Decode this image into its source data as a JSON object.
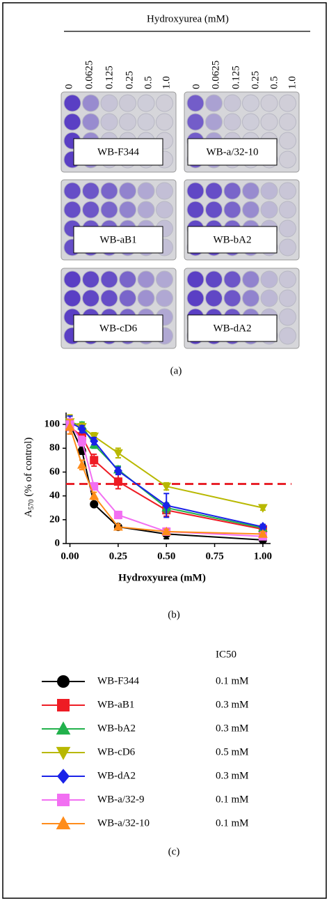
{
  "panel_a": {
    "title": "Hydroxyurea (mM)",
    "concentrations": [
      "0",
      "0.0625",
      "0.125",
      "0.25",
      "0.5",
      "1.0"
    ],
    "plates": [
      "WB-F344",
      "WB-a/32-10",
      "WB-aB1",
      "WB-bA2",
      "WB-cD6",
      "WB-dA2"
    ],
    "caption": "(a)"
  },
  "chart_data": {
    "type": "line",
    "x_label": "Hydroxyurea (mM)",
    "y_label_parts": [
      "A",
      "570",
      "(% of control)"
    ],
    "caption": "(b)",
    "x": [
      0,
      0.0625,
      0.125,
      0.25,
      0.5,
      1.0
    ],
    "xlim": [
      -0.02,
      1.04
    ],
    "xticks": [
      {
        "value": 0,
        "label": "0.00"
      },
      {
        "value": 0.25,
        "label": "0.25"
      },
      {
        "value": 0.5,
        "label": "0.50"
      },
      {
        "value": 0.75,
        "label": "0.75"
      },
      {
        "value": 1,
        "label": "1.00"
      }
    ],
    "ylim": [
      0,
      110
    ],
    "yticks": [
      0,
      20,
      40,
      60,
      80,
      100
    ],
    "reference_line": {
      "value": 50,
      "color": "#e8222a"
    },
    "legend_title": "IC50",
    "legend_caption": "(c)",
    "series": [
      {
        "name": "WB-F344",
        "color": "#000000",
        "marker": "circle",
        "ic50": "0.1 mM",
        "values": [
          100,
          78,
          33,
          14,
          8,
          3
        ],
        "errors": [
          5,
          3,
          2,
          2,
          4,
          2
        ]
      },
      {
        "name": "WB-aB1",
        "color": "#ee1c24",
        "marker": "square",
        "ic50": "0.3 mM",
        "values": [
          98,
          90,
          70,
          52,
          28,
          12
        ],
        "errors": [
          6,
          4,
          5,
          6,
          5,
          4
        ]
      },
      {
        "name": "WB-bA2",
        "color": "#22b14c",
        "marker": "triangle",
        "ic50": "0.3 mM",
        "values": [
          102,
          99,
          83,
          62,
          30,
          13
        ],
        "errors": [
          5,
          3,
          3,
          3,
          4,
          3
        ]
      },
      {
        "name": "WB-cD6",
        "color": "#b8b800",
        "marker": "triangle-down",
        "ic50": "0.5 mM",
        "values": [
          102,
          98,
          90,
          76,
          48,
          30
        ],
        "errors": [
          6,
          3,
          3,
          4,
          3,
          2
        ]
      },
      {
        "name": "WB-dA2",
        "color": "#1a22e8",
        "marker": "diamond",
        "ic50": "0.3 mM",
        "values": [
          102,
          96,
          86,
          61,
          32,
          14
        ],
        "errors": [
          5,
          3,
          3,
          3,
          10,
          2
        ]
      },
      {
        "name": "WB-a/32-9",
        "color": "#f26ff2",
        "marker": "square",
        "ic50": "0.1 mM",
        "values": [
          100,
          86,
          48,
          24,
          10,
          6
        ],
        "errors": [
          5,
          4,
          3,
          3,
          3,
          2
        ]
      },
      {
        "name": "WB-a/32-10",
        "color": "#ff8c1a",
        "marker": "triangle",
        "ic50": "0.1 mM",
        "values": [
          98,
          66,
          40,
          14,
          10,
          8
        ],
        "errors": [
          6,
          4,
          3,
          2,
          2,
          2
        ]
      }
    ]
  }
}
